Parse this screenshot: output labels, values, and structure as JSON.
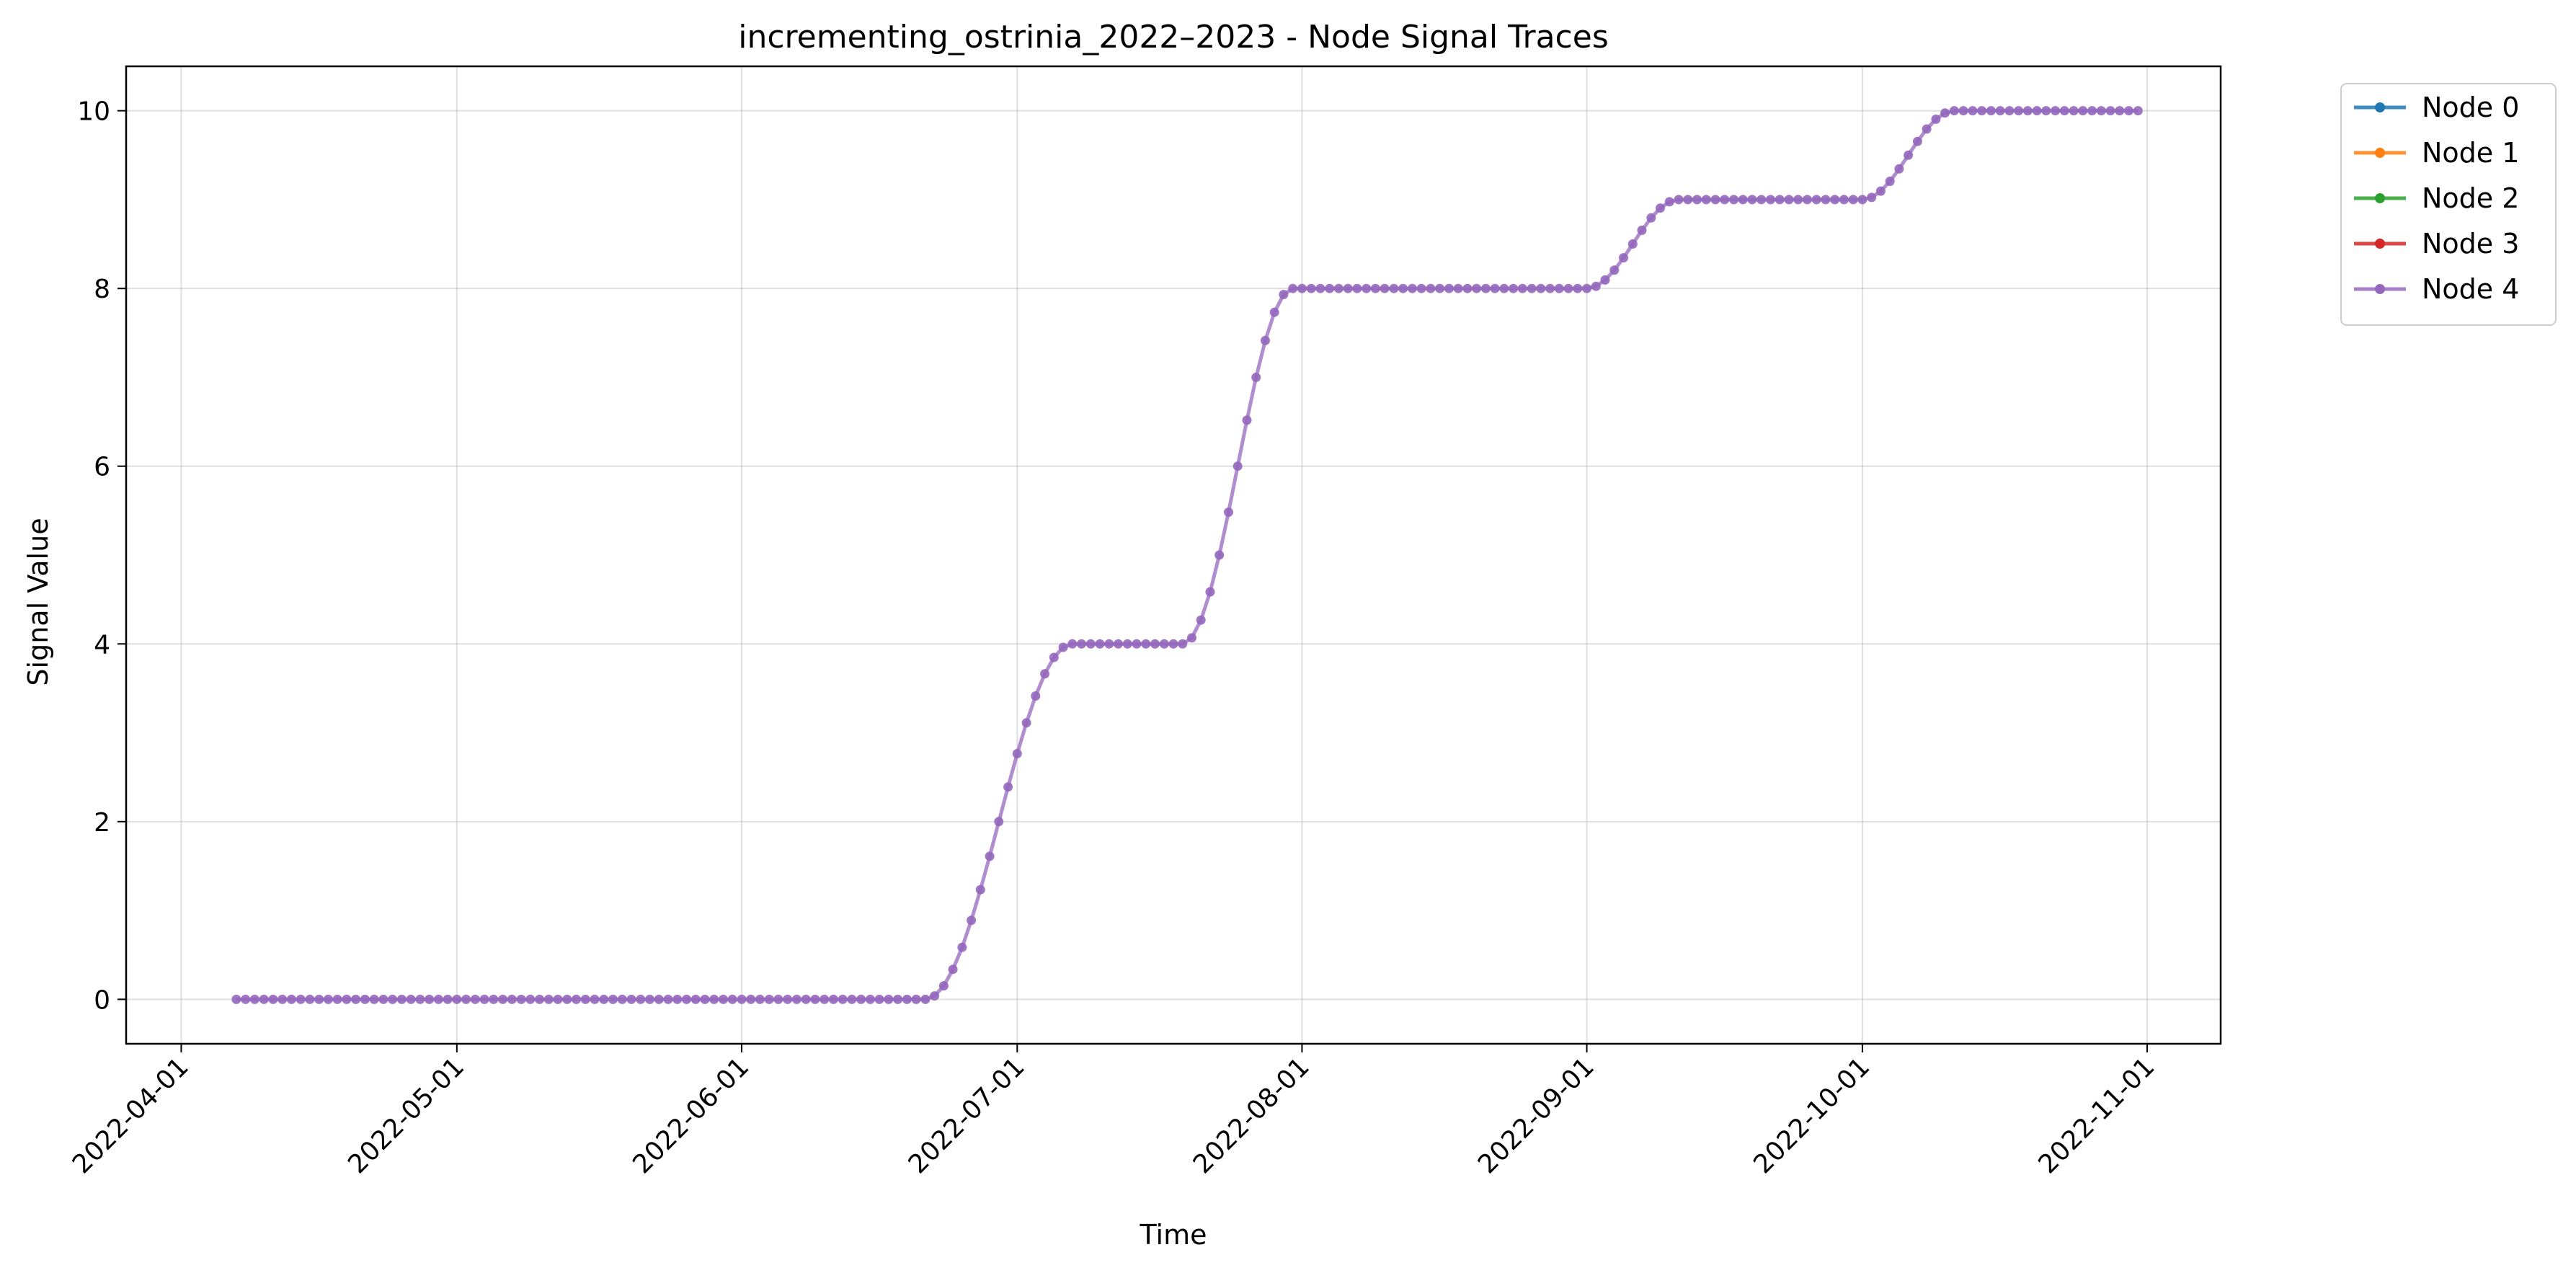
{
  "chart_data": {
    "type": "line",
    "title": "incrementing_ostrinia_2022–2023 - Node Signal Traces",
    "xlabel": "Time",
    "ylabel": "Signal Value",
    "x_axis_type": "date",
    "xlim": [
      "2022-03-26",
      "2022-11-09"
    ],
    "ylim": [
      -0.5,
      10.5
    ],
    "x_ticks": [
      "2022-04-01",
      "2022-05-01",
      "2022-06-01",
      "2022-07-01",
      "2022-08-01",
      "2022-09-01",
      "2022-10-01",
      "2022-11-01"
    ],
    "y_ticks": [
      "0",
      "2",
      "4",
      "6",
      "8",
      "10"
    ],
    "grid": true,
    "legend_position": "outside-top-right",
    "x_start": "2022-04-07",
    "x_end": "2022-10-31",
    "series": [
      {
        "name": "Node 0",
        "color": "#1f77b4",
        "segments": []
      },
      {
        "name": "Node 1",
        "color": "#ff7f0e",
        "segments": []
      },
      {
        "name": "Node 2",
        "color": "#2ca02c",
        "segments": []
      },
      {
        "name": "Node 3",
        "color": "#d62728",
        "segments": []
      },
      {
        "name": "Node 4",
        "color": "#9467bd",
        "segments": [
          {
            "from": "2022-04-07",
            "to": "2022-06-21",
            "y0": 0,
            "y1": 0
          },
          {
            "from": "2022-06-21",
            "to": "2022-07-07",
            "y0": 0,
            "y1": 4
          },
          {
            "from": "2022-07-07",
            "to": "2022-07-19",
            "y0": 4,
            "y1": 4
          },
          {
            "from": "2022-07-19",
            "to": "2022-07-31",
            "y0": 4,
            "y1": 8
          },
          {
            "from": "2022-07-31",
            "to": "2022-09-01",
            "y0": 8,
            "y1": 8
          },
          {
            "from": "2022-09-01",
            "to": "2022-09-11",
            "y0": 8,
            "y1": 9
          },
          {
            "from": "2022-09-11",
            "to": "2022-10-01",
            "y0": 9,
            "y1": 9
          },
          {
            "from": "2022-10-01",
            "to": "2022-10-11",
            "y0": 9,
            "y1": 10
          },
          {
            "from": "2022-10-11",
            "to": "2022-10-31",
            "y0": 10,
            "y1": 10
          }
        ]
      }
    ]
  }
}
